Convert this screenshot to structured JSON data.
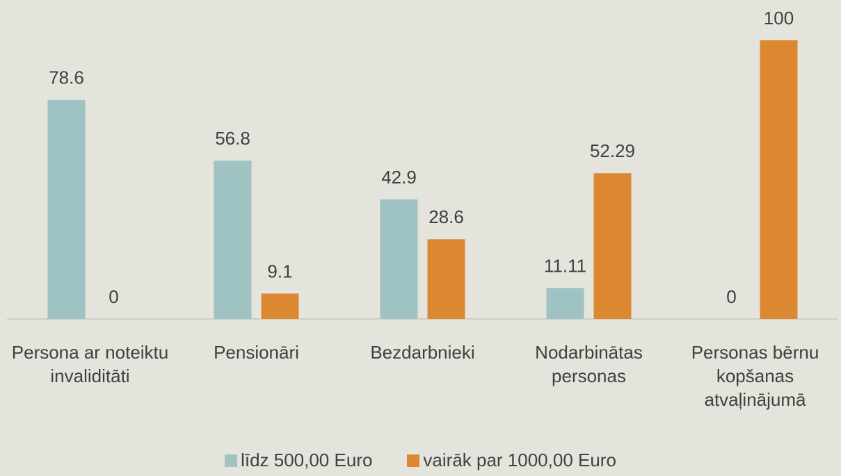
{
  "chart_data": {
    "type": "bar",
    "categories": [
      "Persona ar noteiktu invaliditāti",
      "Pensionāri",
      "Bezdarbnieki",
      "Nodarbinātas personas",
      "Personas bērnu kopšanas atvaļinājumā"
    ],
    "series": [
      {
        "name": "līdz 500,00 Euro",
        "color": "#9fc2c2",
        "values": [
          78.6,
          56.8,
          42.9,
          11.11,
          0
        ]
      },
      {
        "name": "vairāk par 1000,00 Euro",
        "color": "#dc8732",
        "values": [
          0,
          9.1,
          28.6,
          52.29,
          100
        ]
      }
    ],
    "ylim": [
      0,
      100
    ],
    "legend": "bottom"
  }
}
